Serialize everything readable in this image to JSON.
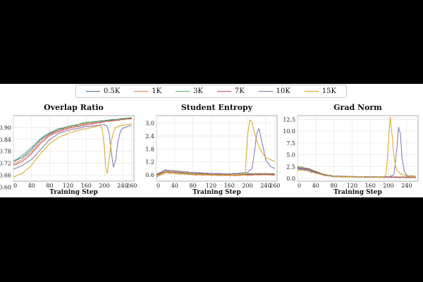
{
  "legend": {
    "items": [
      {
        "label": "0.5K",
        "color": "#4c72b0"
      },
      {
        "label": "1K",
        "color": "#dd8452"
      },
      {
        "label": "3K",
        "color": "#55a868"
      },
      {
        "label": "7K",
        "color": "#c44e52"
      },
      {
        "label": "10K",
        "color": "#8172b3"
      },
      {
        "label": "15K",
        "color": "#d9a820"
      }
    ]
  },
  "chart_data": [
    {
      "type": "line",
      "title": "Overlap Ratio",
      "xlabel": "Training Step",
      "ylabel": "",
      "xlim": [
        0,
        265
      ],
      "ylim": [
        0.63,
        0.96
      ],
      "xticks": [
        0,
        40,
        80,
        120,
        160,
        200,
        240,
        260
      ],
      "xtick_labels": [
        "0",
        "40",
        "80",
        "120",
        "160",
        "200",
        "240",
        "260"
      ],
      "yticks": [
        0.6,
        0.66,
        0.72,
        0.78,
        0.84,
        0.9
      ],
      "ytick_labels": [
        "0.60",
        "0.66",
        "0.72",
        "0.78",
        "0.84",
        "0.90"
      ],
      "series": [
        {
          "name": "0.5K",
          "x": [
            0,
            20,
            40,
            60,
            80,
            100,
            120,
            140,
            160,
            180,
            200,
            220,
            240,
            260
          ],
          "y": [
            0.73,
            0.75,
            0.79,
            0.84,
            0.87,
            0.89,
            0.905,
            0.915,
            0.925,
            0.93,
            0.935,
            0.94,
            0.945,
            0.95
          ]
        },
        {
          "name": "1K",
          "x": [
            0,
            20,
            40,
            60,
            80,
            100,
            120,
            140,
            160,
            180,
            200,
            220,
            240,
            260
          ],
          "y": [
            0.72,
            0.74,
            0.78,
            0.83,
            0.865,
            0.885,
            0.9,
            0.91,
            0.92,
            0.925,
            0.93,
            0.935,
            0.94,
            0.945
          ]
        },
        {
          "name": "3K",
          "x": [
            0,
            20,
            40,
            60,
            80,
            100,
            120,
            140,
            160,
            180,
            200,
            220,
            240,
            260
          ],
          "y": [
            0.73,
            0.76,
            0.8,
            0.845,
            0.875,
            0.895,
            0.905,
            0.915,
            0.925,
            0.93,
            0.935,
            0.94,
            0.945,
            0.95
          ]
        },
        {
          "name": "7K",
          "x": [
            0,
            20,
            40,
            60,
            80,
            100,
            120,
            140,
            160,
            180,
            200,
            220,
            240,
            260
          ],
          "y": [
            0.71,
            0.73,
            0.77,
            0.82,
            0.86,
            0.88,
            0.895,
            0.905,
            0.915,
            0.92,
            0.93,
            0.935,
            0.94,
            0.945
          ]
        },
        {
          "name": "10K",
          "x": [
            0,
            20,
            40,
            60,
            80,
            100,
            120,
            140,
            160,
            180,
            200,
            205,
            210,
            215,
            220,
            225,
            230,
            235,
            240,
            250,
            260
          ],
          "y": [
            0.69,
            0.71,
            0.74,
            0.79,
            0.84,
            0.87,
            0.885,
            0.895,
            0.905,
            0.91,
            0.915,
            0.91,
            0.88,
            0.78,
            0.7,
            0.74,
            0.83,
            0.88,
            0.895,
            0.905,
            0.91
          ]
        },
        {
          "name": "15K",
          "x": [
            0,
            20,
            40,
            60,
            80,
            100,
            120,
            140,
            160,
            180,
            190,
            195,
            200,
            203,
            206,
            210,
            215,
            220,
            225,
            230,
            235,
            240,
            250,
            260
          ],
          "y": [
            0.65,
            0.67,
            0.71,
            0.77,
            0.82,
            0.85,
            0.87,
            0.885,
            0.895,
            0.905,
            0.91,
            0.895,
            0.8,
            0.7,
            0.67,
            0.73,
            0.83,
            0.88,
            0.9,
            0.905,
            0.91,
            0.91,
            0.915,
            0.92
          ]
        }
      ]
    },
    {
      "type": "line",
      "title": "Student Entropy",
      "xlabel": "Training Step",
      "ylabel": "",
      "xlim": [
        0,
        265
      ],
      "ylim": [
        0.3,
        3.35
      ],
      "xticks": [
        0,
        40,
        80,
        120,
        160,
        200,
        240,
        260
      ],
      "xtick_labels": [
        "0",
        "40",
        "80",
        "120",
        "160",
        "200",
        "240",
        "260"
      ],
      "yticks": [
        0.6,
        1.2,
        1.8,
        2.4,
        3.0
      ],
      "ytick_labels": [
        "0.6",
        "1.2",
        "1.8",
        "2.4",
        "3.0"
      ],
      "series": [
        {
          "name": "0.5K",
          "x": [
            0,
            20,
            40,
            80,
            120,
            160,
            200,
            240,
            260
          ],
          "y": [
            0.55,
            0.72,
            0.68,
            0.62,
            0.6,
            0.58,
            0.6,
            0.62,
            0.6
          ]
        },
        {
          "name": "1K",
          "x": [
            0,
            20,
            40,
            80,
            120,
            160,
            200,
            240,
            260
          ],
          "y": [
            0.5,
            0.7,
            0.66,
            0.6,
            0.58,
            0.56,
            0.58,
            0.6,
            0.58
          ]
        },
        {
          "name": "3K",
          "x": [
            0,
            20,
            40,
            80,
            120,
            160,
            200,
            240,
            260
          ],
          "y": [
            0.6,
            0.8,
            0.75,
            0.68,
            0.65,
            0.62,
            0.65,
            0.66,
            0.65
          ]
        },
        {
          "name": "7K",
          "x": [
            0,
            20,
            40,
            80,
            120,
            160,
            200,
            240,
            260
          ],
          "y": [
            0.58,
            0.76,
            0.72,
            0.65,
            0.62,
            0.6,
            0.62,
            0.64,
            0.62
          ]
        },
        {
          "name": "10K",
          "x": [
            0,
            20,
            40,
            80,
            120,
            160,
            200,
            210,
            215,
            220,
            225,
            230,
            240,
            250,
            260
          ],
          "y": [
            0.62,
            0.82,
            0.78,
            0.7,
            0.66,
            0.64,
            0.7,
            0.9,
            1.6,
            2.5,
            2.75,
            2.3,
            1.3,
            1.0,
            0.9
          ]
        },
        {
          "name": "15K",
          "x": [
            0,
            20,
            40,
            80,
            120,
            160,
            195,
            200,
            205,
            210,
            215,
            220,
            225,
            230,
            240,
            250,
            260
          ],
          "y": [
            0.55,
            0.74,
            0.7,
            0.62,
            0.6,
            0.58,
            0.62,
            2.4,
            3.15,
            3.05,
            2.6,
            2.2,
            1.9,
            1.7,
            1.4,
            1.3,
            1.25
          ]
        }
      ]
    },
    {
      "type": "line",
      "title": "Grad Norm",
      "xlabel": "Training Step",
      "ylabel": "",
      "xlim": [
        0,
        265
      ],
      "ylim": [
        -0.6,
        13.3
      ],
      "xticks": [
        0,
        40,
        80,
        120,
        160,
        200,
        240
      ],
      "xtick_labels": [
        "0",
        "40",
        "80",
        "120",
        "160",
        "200",
        "240"
      ],
      "yticks": [
        0.0,
        2.5,
        5.0,
        7.5,
        10.0,
        12.5
      ],
      "ytick_labels": [
        "0.0",
        "2.5",
        "5.0",
        "7.5",
        "10.0",
        "12.5"
      ],
      "series": [
        {
          "name": "0.5K",
          "x": [
            0,
            20,
            40,
            60,
            80,
            120,
            160,
            200,
            240,
            260
          ],
          "y": [
            2.0,
            1.8,
            1.2,
            0.6,
            0.4,
            0.3,
            0.25,
            0.25,
            0.2,
            0.2
          ]
        },
        {
          "name": "1K",
          "x": [
            0,
            20,
            40,
            60,
            80,
            120,
            160,
            200,
            240,
            260
          ],
          "y": [
            2.2,
            2.0,
            1.3,
            0.7,
            0.45,
            0.3,
            0.25,
            0.25,
            0.2,
            0.2
          ]
        },
        {
          "name": "3K",
          "x": [
            0,
            20,
            40,
            60,
            80,
            120,
            160,
            200,
            240,
            260
          ],
          "y": [
            2.5,
            2.2,
            1.5,
            0.8,
            0.5,
            0.35,
            0.3,
            0.3,
            0.25,
            0.25
          ]
        },
        {
          "name": "7K",
          "x": [
            0,
            20,
            40,
            60,
            80,
            120,
            160,
            200,
            240,
            260
          ],
          "y": [
            2.3,
            2.1,
            1.4,
            0.75,
            0.5,
            0.35,
            0.3,
            0.28,
            0.25,
            0.25
          ]
        },
        {
          "name": "10K",
          "x": [
            0,
            20,
            40,
            60,
            80,
            120,
            160,
            200,
            212,
            218,
            222,
            226,
            230,
            235,
            240,
            260
          ],
          "y": [
            2.1,
            1.9,
            1.3,
            0.7,
            0.45,
            0.35,
            0.3,
            0.3,
            0.8,
            6.0,
            10.8,
            9.5,
            4.0,
            1.5,
            0.6,
            0.4
          ]
        },
        {
          "name": "15K",
          "x": [
            0,
            20,
            40,
            60,
            80,
            120,
            160,
            190,
            195,
            200,
            204,
            208,
            212,
            216,
            220,
            230,
            240,
            260
          ],
          "y": [
            1.8,
            1.6,
            1.1,
            0.6,
            0.4,
            0.3,
            0.25,
            0.3,
            1.0,
            8.0,
            12.9,
            9.0,
            4.5,
            2.5,
            1.5,
            0.8,
            0.5,
            0.4
          ]
        }
      ]
    }
  ]
}
